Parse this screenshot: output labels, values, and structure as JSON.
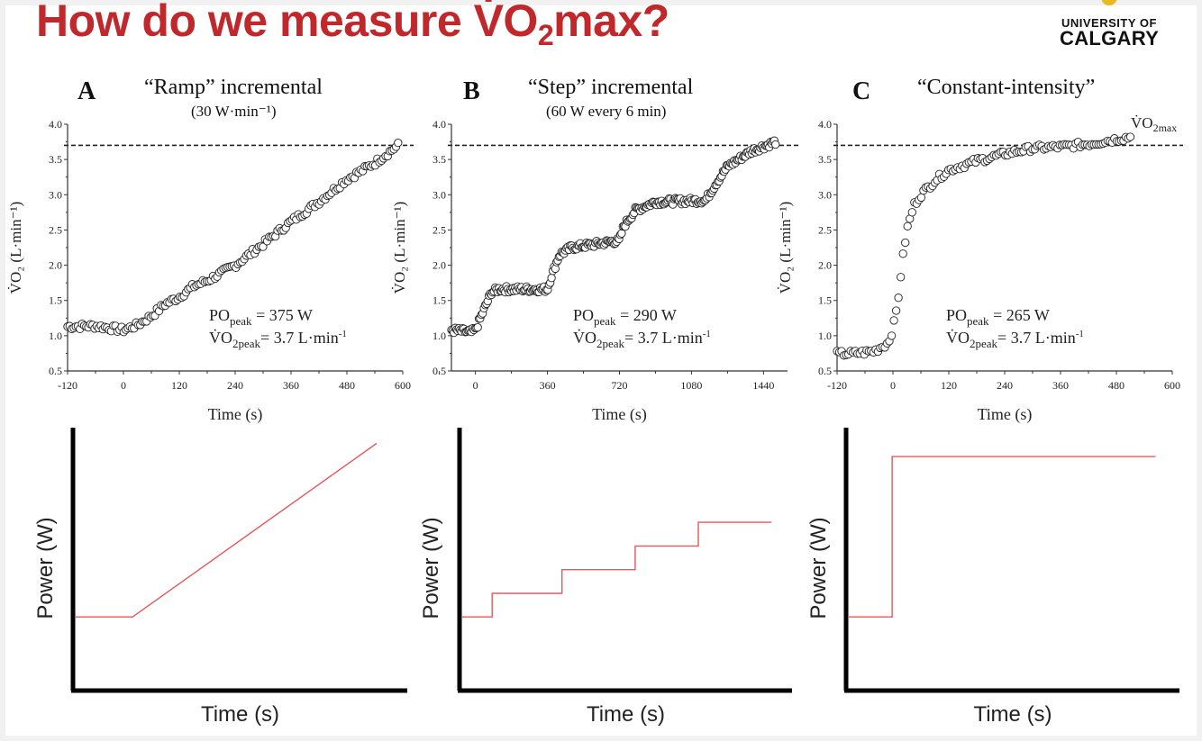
{
  "slide": {
    "title_prefix": "How do we measure V̇O",
    "title_sub": "2",
    "title_suffix": "max?",
    "logo": {
      "line1": "UNIVERSITY OF",
      "line2": "CALGARY",
      "crest_color": "#e8b923"
    },
    "title_color": "#c0282c"
  },
  "chart_data": [
    {
      "id": "A",
      "type": "scatter",
      "letter": "A",
      "title": "“Ramp” incremental",
      "subtitle": "(30 W·min⁻¹)",
      "xlabel": "Time (s)",
      "ylabel": "V̇O₂ (L·min⁻¹)",
      "xlim": [
        -120,
        600
      ],
      "ylim": [
        0.5,
        4.0
      ],
      "xticks": [
        -120,
        0,
        120,
        240,
        360,
        480,
        600
      ],
      "xtick_labels": [
        "-120",
        "0",
        "120",
        "240",
        "360",
        "480",
        "600"
      ],
      "yticks": [
        0.5,
        1.0,
        1.5,
        2.0,
        2.5,
        3.0,
        3.5,
        4.0
      ],
      "ytick_labels": [
        "0.5",
        "1.0",
        "1.5",
        "2.0",
        "2.5",
        "3.0",
        "3.5",
        "4.0"
      ],
      "reference_line": {
        "y": 3.7,
        "style": "dashed"
      },
      "annotation": {
        "po_label": "PO",
        "po_sub": "peak",
        "po_value": "=  375 W",
        "vo_label": "V̇O",
        "vo_sub": "2peak",
        "vo_value": "= 3.7 L·min",
        "vo_sup": "-1"
      },
      "series_shape": {
        "description": "baseline ~1.1 L/min from -120 to 0 s, then linear rise to ~3.7 L/min at ~590 s",
        "points": [
          [
            -120,
            1.13
          ],
          [
            -60,
            1.14
          ],
          [
            -20,
            1.1
          ],
          [
            0,
            1.08
          ],
          [
            30,
            1.15
          ],
          [
            60,
            1.28
          ],
          [
            90,
            1.45
          ],
          [
            120,
            1.55
          ],
          [
            150,
            1.7
          ],
          [
            180,
            1.78
          ],
          [
            240,
            2.0
          ],
          [
            300,
            2.3
          ],
          [
            360,
            2.62
          ],
          [
            420,
            2.9
          ],
          [
            480,
            3.22
          ],
          [
            540,
            3.45
          ],
          [
            590,
            3.7
          ]
        ]
      }
    },
    {
      "id": "B",
      "type": "scatter",
      "letter": "B",
      "title": "“Step” incremental",
      "subtitle": "(60 W every 6 min)",
      "xlabel": "Time (s)",
      "ylabel": "V̇O₂ (L·min⁻¹)",
      "xlim": [
        -120,
        1560
      ],
      "ylim": [
        0.5,
        4.0
      ],
      "xticks": [
        0,
        360,
        720,
        1080,
        1440
      ],
      "xtick_labels": [
        "0",
        "360",
        "720",
        "1080",
        "1440"
      ],
      "yticks": [
        0.5,
        1.0,
        1.5,
        2.0,
        2.5,
        3.0,
        3.5,
        4.0
      ],
      "ytick_labels": [
        "0.5",
        "1.0",
        "1.5",
        "2.0",
        "2.5",
        "3.0",
        "3.5",
        "4.0"
      ],
      "reference_line": {
        "y": 3.7,
        "style": "dashed"
      },
      "annotation": {
        "po_label": "PO",
        "po_sub": "peak",
        "po_value": "=  290 W",
        "vo_label": "V̇O",
        "vo_sub": "2peak",
        "vo_value": "= 3.7 L·min",
        "vo_sup": "-1"
      },
      "series_shape": {
        "description": "stepwise rise: plateaus ~1.05, 1.65, 2.28, 2.92, then rise to ~3.75 L/min",
        "points": [
          [
            -120,
            1.08
          ],
          [
            -20,
            1.05
          ],
          [
            0,
            1.08
          ],
          [
            40,
            1.35
          ],
          [
            80,
            1.62
          ],
          [
            120,
            1.66
          ],
          [
            360,
            1.66
          ],
          [
            380,
            1.85
          ],
          [
            420,
            2.15
          ],
          [
            480,
            2.25
          ],
          [
            720,
            2.35
          ],
          [
            740,
            2.55
          ],
          [
            800,
            2.78
          ],
          [
            900,
            2.9
          ],
          [
            1150,
            2.92
          ],
          [
            1200,
            3.15
          ],
          [
            1260,
            3.4
          ],
          [
            1380,
            3.62
          ],
          [
            1500,
            3.75
          ]
        ]
      }
    },
    {
      "id": "C",
      "type": "scatter",
      "letter": "C",
      "title": "“Constant-intensity”",
      "subtitle": "",
      "xlabel": "Time (s)",
      "ylabel": "V̇O₂ (L·min⁻¹)",
      "xlim": [
        -120,
        600
      ],
      "ylim": [
        0.5,
        4.0
      ],
      "xticks": [
        -120,
        0,
        120,
        240,
        360,
        480,
        600
      ],
      "xtick_labels": [
        "-120",
        "0",
        "120",
        "240",
        "360",
        "480",
        "600"
      ],
      "yticks": [
        0.5,
        1.0,
        1.5,
        2.0,
        2.5,
        3.0,
        3.5,
        4.0
      ],
      "ytick_labels": [
        "0.5",
        "1.0",
        "1.5",
        "2.0",
        "2.5",
        "3.0",
        "3.5",
        "4.0"
      ],
      "reference_line": {
        "y": 3.7,
        "style": "dashed",
        "label": "V̇O",
        "label_sub": "2max"
      },
      "annotation": {
        "po_label": "PO",
        "po_sub": "peak",
        "po_value": "= 265 W",
        "vo_label": "V̇O",
        "vo_sub": "2peak",
        "vo_value": "= 3.7 L·min",
        "vo_sup": "-1"
      },
      "series_shape": {
        "description": "baseline ~0.75 L/min, sharp exponential rise after 0 s, plateau ~3.7 L/min",
        "points": [
          [
            -120,
            0.74
          ],
          [
            -80,
            0.75
          ],
          [
            -40,
            0.78
          ],
          [
            -10,
            0.9
          ],
          [
            0,
            1.1
          ],
          [
            10,
            1.45
          ],
          [
            20,
            2.05
          ],
          [
            30,
            2.5
          ],
          [
            45,
            2.85
          ],
          [
            60,
            3.0
          ],
          [
            90,
            3.2
          ],
          [
            120,
            3.35
          ],
          [
            180,
            3.48
          ],
          [
            240,
            3.58
          ],
          [
            300,
            3.66
          ],
          [
            360,
            3.68
          ],
          [
            420,
            3.72
          ],
          [
            510,
            3.82
          ]
        ]
      }
    }
  ],
  "schematics": [
    {
      "id": "ramp",
      "type": "line",
      "xlabel": "Time (s)",
      "ylabel": "Power (W)",
      "line_color": "#e05a5f",
      "profile": [
        [
          0,
          0.28
        ],
        [
          0.17,
          0.28
        ],
        [
          0.9,
          0.94
        ]
      ]
    },
    {
      "id": "step",
      "type": "line",
      "xlabel": "Time (s)",
      "ylabel": "Power (W)",
      "line_color": "#e05a5f",
      "profile": [
        [
          0,
          0.28
        ],
        [
          0.09,
          0.28
        ],
        [
          0.09,
          0.37
        ],
        [
          0.3,
          0.37
        ],
        [
          0.3,
          0.46
        ],
        [
          0.52,
          0.46
        ],
        [
          0.52,
          0.55
        ],
        [
          0.71,
          0.55
        ],
        [
          0.71,
          0.64
        ],
        [
          0.93,
          0.64
        ]
      ]
    },
    {
      "id": "constant",
      "type": "line",
      "xlabel": "Time (s)",
      "ylabel": "Power (W)",
      "line_color": "#e05a5f",
      "profile": [
        [
          0,
          0.28
        ],
        [
          0.13,
          0.28
        ],
        [
          0.13,
          0.89
        ],
        [
          0.92,
          0.89
        ]
      ]
    }
  ]
}
